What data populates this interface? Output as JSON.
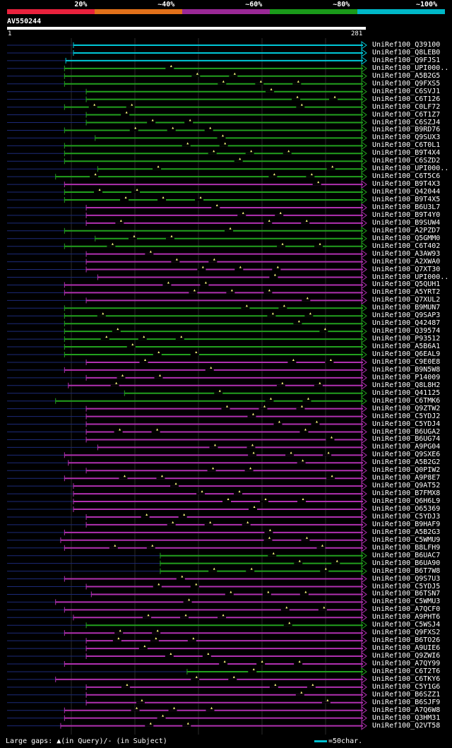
{
  "scale": {
    "segments": [
      {
        "label": "20%",
        "color": "#e8213c"
      },
      {
        "label": "~40%",
        "color": "#e0701a"
      },
      {
        "label": "~60%",
        "color": "#9a2896"
      },
      {
        "label": "~80%",
        "color": "#1a9a1a"
      },
      {
        "label": "~100%",
        "color": "#00b8c8"
      }
    ]
  },
  "query": {
    "name": "AV550244",
    "start": "1",
    "end": "281"
  },
  "colors": {
    "cyan": "#00c8d8",
    "green": "#22a01e",
    "purple": "#b030b0",
    "navy": "#1c2a78",
    "grid": "#2a2a2a",
    "marker": "#ffff80"
  },
  "chart_data": {
    "type": "alignment",
    "query_length": 281,
    "hits": [
      {
        "name": "UniRef100_Q39100",
        "color": "cyan",
        "start": 52
      },
      {
        "name": "UniRef100_Q8LEB0",
        "color": "cyan",
        "start": 52
      },
      {
        "name": "UniRef100_Q9FJS1",
        "color": "cyan",
        "start": 46
      },
      {
        "name": "UniRef100_UPI000..",
        "color": "green",
        "start": 45
      },
      {
        "name": "UniRef100_A5B2G5",
        "color": "green",
        "start": 45
      },
      {
        "name": "UniRef100_Q9FXS5",
        "color": "green",
        "start": 45
      },
      {
        "name": "UniRef100_C6SVJ1",
        "color": "green",
        "start": 62
      },
      {
        "name": "UniRef100_C6T126",
        "color": "green",
        "start": 62
      },
      {
        "name": "UniRef100_C0LF72",
        "color": "green",
        "start": 45
      },
      {
        "name": "UniRef100_C6T1Z7",
        "color": "green",
        "start": 62
      },
      {
        "name": "UniRef100_C6SZJ4",
        "color": "green",
        "start": 62
      },
      {
        "name": "UniRef100_B9RD76",
        "color": "green",
        "start": 45
      },
      {
        "name": "UniRef100_Q9SUX3",
        "color": "green",
        "start": 69
      },
      {
        "name": "UniRef100_C6T0L1",
        "color": "green",
        "start": 45
      },
      {
        "name": "UniRef100_B9T4X4",
        "color": "green",
        "start": 45
      },
      {
        "name": "UniRef100_C6SZD2",
        "color": "green",
        "start": 45
      },
      {
        "name": "UniRef100_UPI000..",
        "color": "green",
        "start": 71
      },
      {
        "name": "UniRef100_C6T5C6",
        "color": "green",
        "start": 38
      },
      {
        "name": "UniRef100_B9T4X3",
        "color": "purple",
        "start": 45
      },
      {
        "name": "UniRef100_Q42044",
        "color": "green",
        "start": 45
      },
      {
        "name": "UniRef100_B9T4X5",
        "color": "green",
        "start": 45
      },
      {
        "name": "UniRef100_B6U3L7",
        "color": "purple",
        "start": 62
      },
      {
        "name": "UniRef100_B9T4Y0",
        "color": "purple",
        "start": 62
      },
      {
        "name": "UniRef100_B9SUW4",
        "color": "purple",
        "start": 62
      },
      {
        "name": "UniRef100_A2PZD7",
        "color": "green",
        "start": 45
      },
      {
        "name": "UniRef100_Q5GMM0",
        "color": "green",
        "start": 69
      },
      {
        "name": "UniRef100_C6T402",
        "color": "green",
        "start": 45
      },
      {
        "name": "UniRef100_A3AW93",
        "color": "purple",
        "start": 62
      },
      {
        "name": "UniRef100_A2XWA0",
        "color": "purple",
        "start": 62
      },
      {
        "name": "UniRef100_Q7XT30",
        "color": "purple",
        "start": 62
      },
      {
        "name": "UniRef100_UPI000..",
        "color": "purple",
        "start": 71
      },
      {
        "name": "UniRef100_Q5QUH1",
        "color": "purple",
        "start": 45
      },
      {
        "name": "UniRef100_A5YRT2",
        "color": "purple",
        "start": 45
      },
      {
        "name": "UniRef100_Q7XUL2",
        "color": "purple",
        "start": 62
      },
      {
        "name": "UniRef100_B9MUN7",
        "color": "green",
        "start": 45
      },
      {
        "name": "UniRef100_Q9SAP3",
        "color": "green",
        "start": 45
      },
      {
        "name": "UniRef100_Q42487",
        "color": "green",
        "start": 45
      },
      {
        "name": "UniRef100_Q39574",
        "color": "green",
        "start": 45
      },
      {
        "name": "UniRef100_P93512",
        "color": "green",
        "start": 45
      },
      {
        "name": "UniRef100_A5B6A1",
        "color": "green",
        "start": 45
      },
      {
        "name": "UniRef100_Q6EAL9",
        "color": "green",
        "start": 45
      },
      {
        "name": "UniRef100_C9E0E8",
        "color": "purple",
        "start": 62
      },
      {
        "name": "UniRef100_B9N5W8",
        "color": "purple",
        "start": 45
      },
      {
        "name": "UniRef100_P14009",
        "color": "purple",
        "start": 62
      },
      {
        "name": "UniRef100_Q8L8H2",
        "color": "purple",
        "start": 48
      },
      {
        "name": "UniRef100_Q41125",
        "color": "green",
        "start": 92
      },
      {
        "name": "UniRef100_C6TMK6",
        "color": "green",
        "start": 38
      },
      {
        "name": "UniRef100_Q9ZTW2",
        "color": "purple",
        "start": 62
      },
      {
        "name": "UniRef100_C5YDJ2",
        "color": "purple",
        "start": 62
      },
      {
        "name": "UniRef100_C5YDJ4",
        "color": "purple",
        "start": 62
      },
      {
        "name": "UniRef100_B6UGA2",
        "color": "purple",
        "start": 62
      },
      {
        "name": "UniRef100_B6UG74",
        "color": "purple",
        "start": 62
      },
      {
        "name": "UniRef100_A9PG04",
        "color": "purple",
        "start": 71
      },
      {
        "name": "UniRef100_Q9SXE6",
        "color": "purple",
        "start": 45
      },
      {
        "name": "UniRef100_A5B2G2",
        "color": "purple",
        "start": 48
      },
      {
        "name": "UniRef100_Q0PIW2",
        "color": "purple",
        "start": 62
      },
      {
        "name": "UniRef100_A9P8E7",
        "color": "purple",
        "start": 45
      },
      {
        "name": "UniRef100_Q9AT52",
        "color": "purple",
        "start": 52
      },
      {
        "name": "UniRef100_B7FMX8",
        "color": "purple",
        "start": 52
      },
      {
        "name": "UniRef100_Q6H6L9",
        "color": "purple",
        "start": 52
      },
      {
        "name": "UniRef100_O65369",
        "color": "purple",
        "start": 52
      },
      {
        "name": "UniRef100_C5YDJ3",
        "color": "purple",
        "start": 62
      },
      {
        "name": "UniRef100_B9HAF9",
        "color": "purple",
        "start": 62
      },
      {
        "name": "UniRef100_A5B2G3",
        "color": "purple",
        "start": 45
      },
      {
        "name": "UniRef100_C5WMU9",
        "color": "purple",
        "start": 42
      },
      {
        "name": "UniRef100_B8LFH9",
        "color": "purple",
        "start": 45
      },
      {
        "name": "UniRef100_B6UAC7",
        "color": "green",
        "start": 120
      },
      {
        "name": "UniRef100_B6UA90",
        "color": "green",
        "start": 120
      },
      {
        "name": "UniRef100_B6T7W8",
        "color": "green",
        "start": 120
      },
      {
        "name": "UniRef100_Q9S7U3",
        "color": "purple",
        "start": 45
      },
      {
        "name": "UniRef100_C5YDJ5",
        "color": "purple",
        "start": 62
      },
      {
        "name": "UniRef100_B6TSN7",
        "color": "purple",
        "start": 66
      },
      {
        "name": "UniRef100_C5WMU3",
        "color": "purple",
        "start": 38
      },
      {
        "name": "UniRef100_A7QCF0",
        "color": "purple",
        "start": 45
      },
      {
        "name": "UniRef100_A9PHT6",
        "color": "purple",
        "start": 52
      },
      {
        "name": "UniRef100_C5WSJ4",
        "color": "green",
        "start": 62
      },
      {
        "name": "UniRef100_Q9FXS2",
        "color": "purple",
        "start": 45
      },
      {
        "name": "UniRef100_B6TO26",
        "color": "purple",
        "start": 62
      },
      {
        "name": "UniRef100_A9UIE6",
        "color": "purple",
        "start": 62
      },
      {
        "name": "UniRef100_Q9ZWI6",
        "color": "purple",
        "start": 62
      },
      {
        "name": "UniRef100_A7QY99",
        "color": "purple",
        "start": 45
      },
      {
        "name": "UniRef100_C6T2T6",
        "color": "green",
        "start": 141
      },
      {
        "name": "UniRef100_C6TKY6",
        "color": "purple",
        "start": 38
      },
      {
        "name": "UniRef100_C5Y1G6",
        "color": "purple",
        "start": 62
      },
      {
        "name": "UniRef100_B6SZZ1",
        "color": "purple",
        "start": 62
      },
      {
        "name": "UniRef100_B6SJF9",
        "color": "purple",
        "start": 62
      },
      {
        "name": "UniRef100_A7Q6W8",
        "color": "purple",
        "start": 45
      },
      {
        "name": "UniRef100_Q3HM31",
        "color": "purple",
        "start": 45
      },
      {
        "name": "UniRef100_Q2VT58",
        "color": "purple",
        "start": 42
      }
    ]
  },
  "legend": {
    "text": "Large gaps: ▲(in Query)/- (in Subject)",
    "scale_label": "=50char."
  }
}
